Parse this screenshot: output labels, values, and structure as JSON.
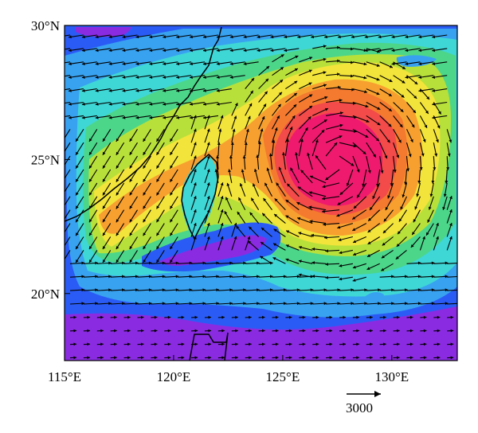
{
  "map": {
    "extent": {
      "lon_min": 115,
      "lon_max": 133,
      "lat_min": 17.5,
      "lat_max": 30
    },
    "x_ticks": [
      {
        "lon": 115,
        "label": "115°E"
      },
      {
        "lon": 120,
        "label": "120°E"
      },
      {
        "lon": 125,
        "label": "125°E"
      },
      {
        "lon": 130,
        "label": "130°E"
      }
    ],
    "y_ticks": [
      {
        "lat": 30,
        "label": "30°N"
      },
      {
        "lat": 25,
        "label": "25°N"
      },
      {
        "lat": 20,
        "label": "20°N"
      }
    ],
    "reference_vector": {
      "label": "3000"
    },
    "colors": {
      "purple": "#8a2be2",
      "blue": "#2a5cf5",
      "light_blue": "#38a2f0",
      "cyan": "#3fd6d6",
      "green": "#4cd68a",
      "yellow_green": "#b8e03a",
      "yellow": "#f2e43a",
      "orange": "#f7a030",
      "dark_orange": "#f37a2f",
      "red": "#f34a4a",
      "magenta": "#ef1a6e"
    }
  }
}
